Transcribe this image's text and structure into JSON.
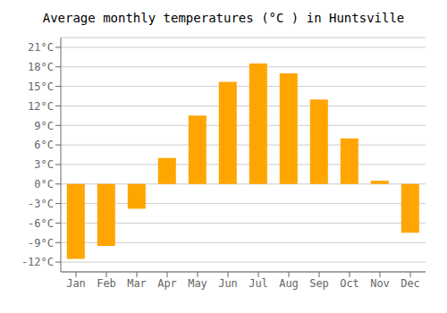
{
  "chart_data": {
    "type": "bar",
    "title": "Average monthly temperatures (°C ) in Huntsville",
    "categories": [
      "Jan",
      "Feb",
      "Mar",
      "Apr",
      "May",
      "Jun",
      "Jul",
      "Aug",
      "Sep",
      "Oct",
      "Nov",
      "Dec"
    ],
    "values": [
      -11.5,
      -9.5,
      -3.8,
      4.0,
      10.5,
      15.7,
      18.5,
      17.0,
      13.0,
      7.0,
      0.5,
      -7.5
    ],
    "color": "#FFA500",
    "ylim": [
      -13.5,
      22.5
    ],
    "yticks": [
      {
        "value": -12,
        "label": "-12°C"
      },
      {
        "value": -9,
        "label": "-9°C"
      },
      {
        "value": -6,
        "label": "-6°C"
      },
      {
        "value": -3,
        "label": "-3°C"
      },
      {
        "value": 0,
        "label": "0°C"
      },
      {
        "value": 3,
        "label": "3°C"
      },
      {
        "value": 6,
        "label": "6°C"
      },
      {
        "value": 9,
        "label": "9°C"
      },
      {
        "value": 12,
        "label": "12°C"
      },
      {
        "value": 15,
        "label": "15°C"
      },
      {
        "value": 18,
        "label": "18°C"
      },
      {
        "value": 21,
        "label": "21°C"
      }
    ],
    "grid": true
  }
}
